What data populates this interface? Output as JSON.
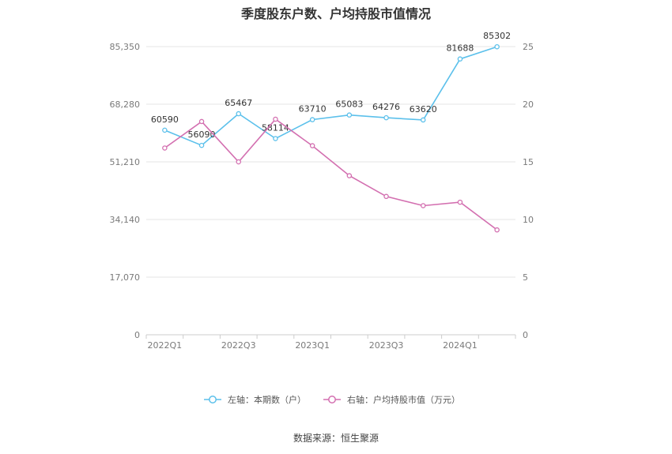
{
  "chart_data": {
    "type": "line",
    "title": "季度股东户数、户均持股市值情况",
    "categories": [
      "2022Q1",
      "2022Q2",
      "2022Q3",
      "2022Q4",
      "2023Q1",
      "2023Q2",
      "2023Q3",
      "2023Q4",
      "2024Q1",
      "2024Q2"
    ],
    "x_tick_labels": [
      "2022Q1",
      "2022Q3",
      "2023Q1",
      "2023Q3",
      "2024Q1"
    ],
    "left_axis": {
      "min": 0,
      "max": 85350,
      "ticks": [
        "0",
        "17,070",
        "34,140",
        "51,210",
        "68,280",
        "85,350"
      ]
    },
    "right_axis": {
      "min": 0,
      "max": 25,
      "ticks": [
        "0",
        "5",
        "10",
        "15",
        "20",
        "25"
      ]
    },
    "series": [
      {
        "name": "左轴：本期数（户）",
        "axis": "left",
        "color": "#5bc0eb",
        "values": [
          60590,
          56090,
          65467,
          58114,
          63710,
          65083,
          64276,
          63620,
          81688,
          85302
        ],
        "labels": [
          "60590",
          "56090",
          "65467",
          "58114",
          "63710",
          "65083",
          "64276",
          "63620",
          "81688",
          "85302"
        ]
      },
      {
        "name": "右轴：户均持股市值（万元）",
        "axis": "right",
        "color": "#d36fb0",
        "values": [
          16.2,
          18.5,
          15.0,
          18.7,
          16.4,
          13.8,
          12.0,
          11.2,
          11.5,
          9.1
        ]
      }
    ],
    "grid": true,
    "legend": "bottom"
  },
  "source": "数据来源：恒生聚源"
}
